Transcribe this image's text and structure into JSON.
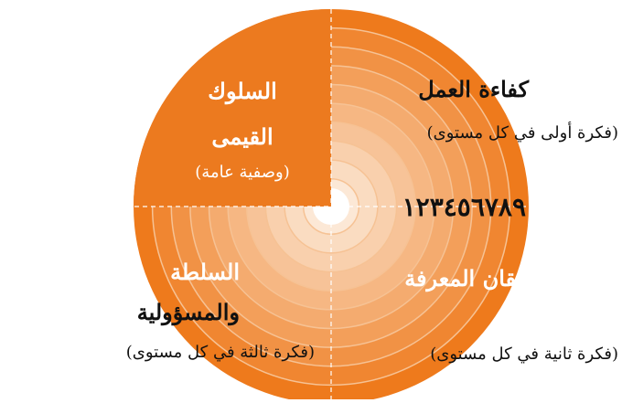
{
  "quadrants": {
    "top_left": {
      "title_line1": "السلوك",
      "title_line2": "القيمى",
      "subtitle": "(وصفية عامة)"
    },
    "top_right": {
      "title": "كفاءة العمل",
      "subtitle": "(فكرة أولى في كل مستوى)"
    },
    "bottom_right": {
      "title": "إتقان المعرفة",
      "subtitle": "(فكرة ثانية في كل مستوى)"
    },
    "bottom_left": {
      "title_line1": "السلطة",
      "title_line2": "والمسؤولية",
      "subtitle": "(فكرة ثالثة في كل مستوى)"
    }
  },
  "levels": {
    "label": "١٢٣٤٥٦٧٨٩",
    "count": 9
  },
  "colors": {
    "outer": "#ee7a1c",
    "solid_quadrant": "#ec7a1f",
    "ring_line": "#f6c294",
    "center": "#ffffff",
    "text_light": "#ffffff",
    "text_dark": "#111111",
    "guides": "#ffffff"
  }
}
